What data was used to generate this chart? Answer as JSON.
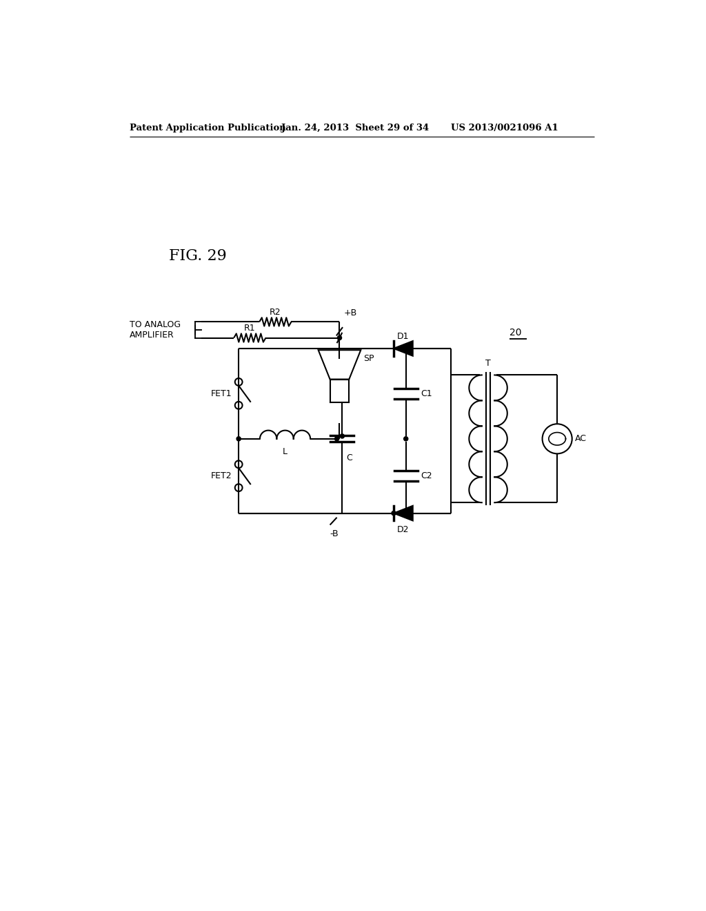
{
  "header_left": "Patent Application Publication",
  "header_mid": "Jan. 24, 2013  Sheet 29 of 34",
  "header_right": "US 2013/0021096 A1",
  "bg_color": "#ffffff",
  "line_color": "#000000",
  "fig_label": "FIG. 29",
  "label_20": "20",
  "label_plusB": "+B",
  "label_minusB": "-B",
  "label_R2": "R2",
  "label_R1": "R1",
  "label_D1": "D1",
  "label_D2": "D2",
  "label_C1": "C1",
  "label_C2": "C2",
  "label_L": "L",
  "label_C": "C",
  "label_T": "T",
  "label_SP": "SP",
  "label_FET1": "FET1",
  "label_FET2": "FET2",
  "label_AC": "AC",
  "label_to_analog": "TO ANALOG\nAMPLIFIER"
}
